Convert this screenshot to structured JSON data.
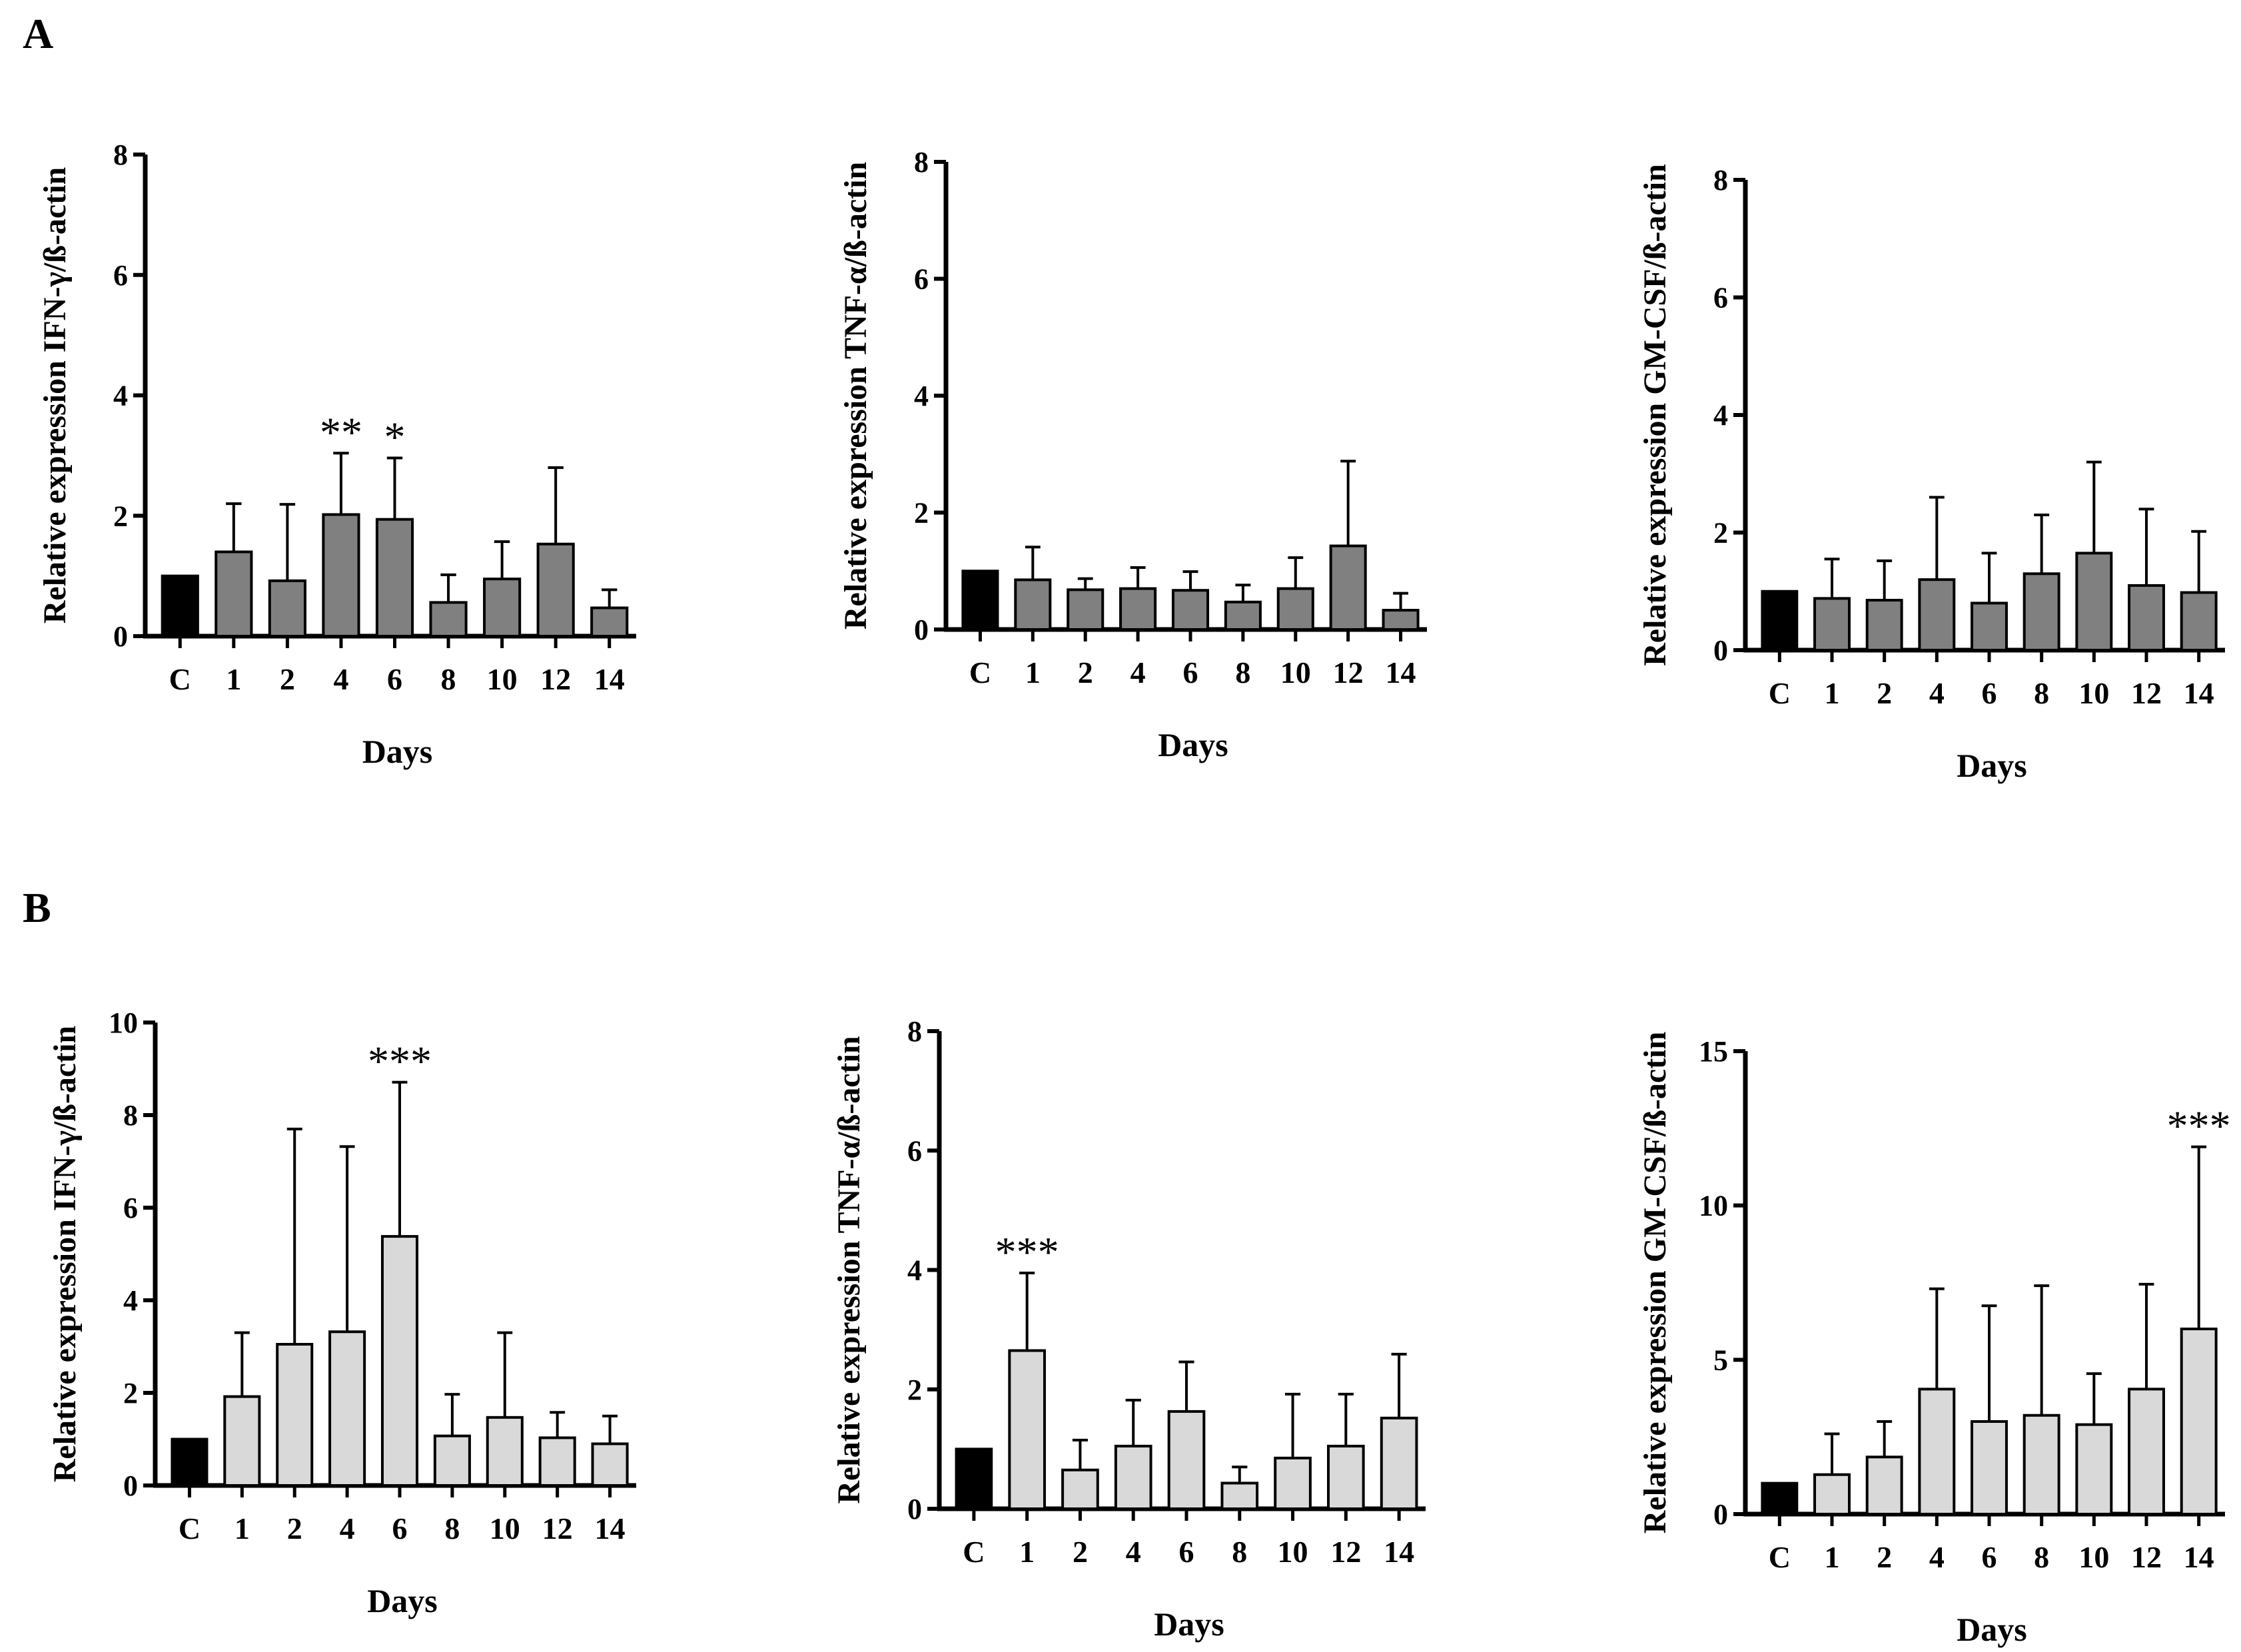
{
  "panels": [
    {
      "label": "A"
    },
    {
      "label": "B"
    }
  ],
  "colors": {
    "control": "#000000",
    "panel_a": "#808080",
    "panel_b": "#d9d9d9",
    "axis": "#000000"
  },
  "chart_data": [
    {
      "type": "bar",
      "panel": "A",
      "ylabel": "Relative expression IFN-γ/ß-actin",
      "xlabel": "Days",
      "categories": [
        "C",
        "1",
        "2",
        "4",
        "6",
        "8",
        "10",
        "12",
        "14"
      ],
      "values": [
        1.0,
        1.4,
        0.92,
        2.02,
        1.94,
        0.56,
        0.95,
        1.53,
        0.47
      ],
      "errors": [
        0,
        0.8,
        1.27,
        1.02,
        1.02,
        0.46,
        0.62,
        1.27,
        0.3
      ],
      "significance": [
        "",
        "",
        "",
        "**",
        "*",
        "",
        "",
        "",
        ""
      ],
      "ylim": [
        0,
        8
      ],
      "yticks": [
        0,
        2,
        4,
        6,
        8
      ]
    },
    {
      "type": "bar",
      "panel": "A",
      "ylabel": "Relative expression TNF-α/ß-actin",
      "xlabel": "Days",
      "categories": [
        "C",
        "1",
        "2",
        "4",
        "6",
        "8",
        "10",
        "12",
        "14"
      ],
      "values": [
        1.0,
        0.85,
        0.68,
        0.7,
        0.67,
        0.47,
        0.7,
        1.43,
        0.33
      ],
      "errors": [
        0,
        0.56,
        0.19,
        0.36,
        0.32,
        0.29,
        0.53,
        1.45,
        0.29
      ],
      "significance": [
        "",
        "",
        "",
        "",
        "",
        "",
        "",
        "",
        ""
      ],
      "ylim": [
        0,
        8
      ],
      "yticks": [
        0,
        2,
        4,
        6,
        8
      ]
    },
    {
      "type": "bar",
      "panel": "A",
      "ylabel": "Relative expression GM-CSF/ß-actin",
      "xlabel": "Days",
      "categories": [
        "C",
        "1",
        "2",
        "4",
        "6",
        "8",
        "10",
        "12",
        "14"
      ],
      "values": [
        1.0,
        0.88,
        0.85,
        1.2,
        0.8,
        1.3,
        1.65,
        1.1,
        0.98
      ],
      "errors": [
        0,
        0.67,
        0.67,
        1.4,
        0.85,
        1.0,
        1.55,
        1.3,
        1.04
      ],
      "significance": [
        "",
        "",
        "",
        "",
        "",
        "",
        "",
        "",
        ""
      ],
      "ylim": [
        0,
        8
      ],
      "yticks": [
        0,
        2,
        4,
        6,
        8
      ]
    },
    {
      "type": "bar",
      "panel": "B",
      "ylabel": "Relative expression IFN-γ/ß-actin",
      "xlabel": "Days",
      "categories": [
        "C",
        "1",
        "2",
        "4",
        "6",
        "8",
        "10",
        "12",
        "14"
      ],
      "values": [
        1.0,
        1.92,
        3.05,
        3.32,
        5.38,
        1.07,
        1.47,
        1.03,
        0.9
      ],
      "errors": [
        0,
        1.38,
        4.65,
        4.0,
        3.33,
        0.9,
        1.83,
        0.55,
        0.6
      ],
      "significance": [
        "",
        "",
        "",
        "",
        "***",
        "",
        "",
        "",
        ""
      ],
      "ylim": [
        0,
        10
      ],
      "yticks": [
        0,
        2,
        4,
        6,
        8,
        10
      ]
    },
    {
      "type": "bar",
      "panel": "B",
      "ylabel": "Relative expression TNF-α/ß-actin",
      "xlabel": "Days",
      "categories": [
        "C",
        "1",
        "2",
        "4",
        "6",
        "8",
        "10",
        "12",
        "14"
      ],
      "values": [
        1.0,
        2.65,
        0.65,
        1.05,
        1.63,
        0.43,
        0.85,
        1.05,
        1.52
      ],
      "errors": [
        0,
        1.3,
        0.5,
        0.77,
        0.83,
        0.27,
        1.07,
        0.87,
        1.07
      ],
      "significance": [
        "",
        "***",
        "",
        "",
        "",
        "",
        "",
        "",
        ""
      ],
      "ylim": [
        0,
        8
      ],
      "yticks": [
        0,
        2,
        4,
        6,
        8
      ]
    },
    {
      "type": "bar",
      "panel": "B",
      "ylabel": "Relative expression GM-CSF/ß-actin",
      "xlabel": "Days",
      "categories": [
        "C",
        "1",
        "2",
        "4",
        "6",
        "8",
        "10",
        "12",
        "14"
      ],
      "values": [
        1.0,
        1.28,
        1.85,
        4.05,
        3.0,
        3.2,
        2.9,
        4.05,
        6.0
      ],
      "errors": [
        0,
        1.32,
        1.15,
        3.25,
        3.75,
        4.2,
        1.65,
        3.4,
        5.9
      ],
      "significance": [
        "",
        "",
        "",
        "",
        "",
        "",
        "",
        "",
        "***"
      ],
      "ylim": [
        0,
        15
      ],
      "yticks": [
        0,
        5,
        10,
        15
      ]
    }
  ]
}
